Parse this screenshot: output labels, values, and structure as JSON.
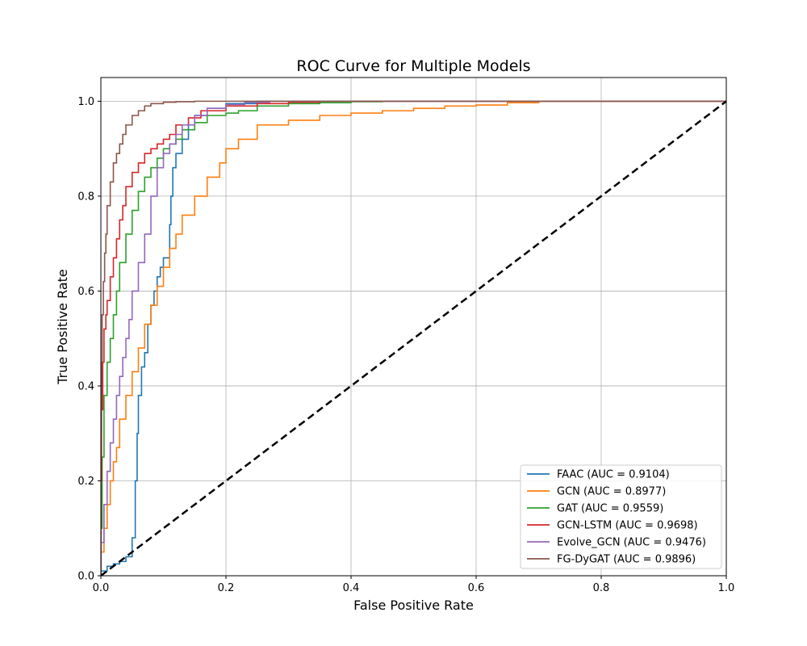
{
  "chart_data": {
    "type": "line",
    "title": "ROC Curve for Multiple Models",
    "xlabel": "False Positive Rate",
    "ylabel": "True Positive Rate",
    "xlim": [
      0.0,
      1.0
    ],
    "ylim": [
      0.0,
      1.05
    ],
    "xticks": [
      "0.0",
      "0.2",
      "0.4",
      "0.6",
      "0.8",
      "1.0"
    ],
    "yticks": [
      "0.0",
      "0.2",
      "0.4",
      "0.6",
      "0.8",
      "1.0"
    ],
    "grid": true,
    "legend_position": "bottom-right",
    "series": [
      {
        "name": "FAAC (AUC = 0.9104)",
        "color": "#1f77b4",
        "x": [
          0.0,
          0.01,
          0.02,
          0.03,
          0.04,
          0.05,
          0.055,
          0.058,
          0.06,
          0.065,
          0.07,
          0.075,
          0.08,
          0.085,
          0.09,
          0.095,
          0.1,
          0.11,
          0.112,
          0.115,
          0.12,
          0.13,
          0.14,
          0.15,
          0.17,
          0.2,
          0.25,
          0.3,
          1.0
        ],
        "y": [
          0.0,
          0.01,
          0.02,
          0.025,
          0.03,
          0.04,
          0.08,
          0.2,
          0.3,
          0.38,
          0.44,
          0.47,
          0.53,
          0.57,
          0.6,
          0.63,
          0.65,
          0.67,
          0.74,
          0.8,
          0.86,
          0.89,
          0.92,
          0.95,
          0.97,
          0.985,
          0.995,
          1.0,
          1.0
        ]
      },
      {
        "name": "GCN (AUC = 0.8977)",
        "color": "#ff7f0e",
        "x": [
          0.0,
          0.005,
          0.01,
          0.015,
          0.02,
          0.025,
          0.03,
          0.04,
          0.05,
          0.06,
          0.07,
          0.08,
          0.09,
          0.1,
          0.11,
          0.12,
          0.13,
          0.15,
          0.17,
          0.19,
          0.2,
          0.22,
          0.25,
          0.3,
          0.35,
          0.4,
          0.45,
          0.5,
          0.55,
          0.6,
          0.65,
          0.7,
          0.75,
          1.0
        ],
        "y": [
          0.0,
          0.05,
          0.1,
          0.15,
          0.2,
          0.24,
          0.27,
          0.33,
          0.38,
          0.43,
          0.48,
          0.53,
          0.57,
          0.61,
          0.65,
          0.69,
          0.72,
          0.76,
          0.8,
          0.84,
          0.87,
          0.9,
          0.92,
          0.95,
          0.96,
          0.97,
          0.975,
          0.98,
          0.985,
          0.99,
          0.992,
          0.997,
          1.0,
          1.0
        ]
      },
      {
        "name": "GAT (AUC = 0.9559)",
        "color": "#2ca02c",
        "x": [
          0.0,
          0.002,
          0.005,
          0.01,
          0.015,
          0.02,
          0.025,
          0.03,
          0.04,
          0.05,
          0.06,
          0.07,
          0.08,
          0.09,
          0.1,
          0.11,
          0.12,
          0.13,
          0.15,
          0.17,
          0.2,
          0.22,
          0.25,
          0.3,
          0.35,
          0.4,
          0.45,
          0.55,
          1.0
        ],
        "y": [
          0.0,
          0.1,
          0.25,
          0.38,
          0.45,
          0.5,
          0.55,
          0.6,
          0.66,
          0.72,
          0.77,
          0.81,
          0.84,
          0.86,
          0.88,
          0.9,
          0.91,
          0.92,
          0.94,
          0.955,
          0.97,
          0.975,
          0.98,
          0.99,
          0.995,
          0.997,
          0.999,
          1.0,
          1.0
        ]
      },
      {
        "name": "GCN-LSTM (AUC = 0.9698)",
        "color": "#d62728",
        "x": [
          0.0,
          0.001,
          0.003,
          0.005,
          0.008,
          0.01,
          0.015,
          0.02,
          0.025,
          0.03,
          0.035,
          0.04,
          0.05,
          0.06,
          0.07,
          0.08,
          0.09,
          0.1,
          0.11,
          0.12,
          0.14,
          0.16,
          0.2,
          0.25,
          0.3,
          0.35,
          1.0
        ],
        "y": [
          0.0,
          0.2,
          0.35,
          0.45,
          0.52,
          0.55,
          0.58,
          0.63,
          0.67,
          0.71,
          0.75,
          0.78,
          0.82,
          0.85,
          0.87,
          0.89,
          0.9,
          0.91,
          0.92,
          0.93,
          0.95,
          0.965,
          0.98,
          0.99,
          0.995,
          0.998,
          1.0
        ]
      },
      {
        "name": "Evolve_GCN (AUC = 0.9476)",
        "color": "#9467bd",
        "x": [
          0.0,
          0.005,
          0.01,
          0.015,
          0.02,
          0.025,
          0.03,
          0.035,
          0.04,
          0.045,
          0.05,
          0.06,
          0.07,
          0.08,
          0.09,
          0.1,
          0.11,
          0.12,
          0.13,
          0.15,
          0.17,
          0.2,
          0.23,
          0.27,
          0.3,
          1.0
        ],
        "y": [
          0.0,
          0.07,
          0.15,
          0.22,
          0.28,
          0.33,
          0.38,
          0.42,
          0.46,
          0.5,
          0.54,
          0.6,
          0.66,
          0.72,
          0.8,
          0.86,
          0.89,
          0.91,
          0.93,
          0.95,
          0.97,
          0.985,
          0.993,
          0.998,
          1.0,
          1.0
        ]
      },
      {
        "name": "FG-DyGAT (AUC = 0.9896)",
        "color": "#8c564b",
        "x": [
          0.0,
          0.001,
          0.002,
          0.004,
          0.006,
          0.008,
          0.01,
          0.015,
          0.02,
          0.025,
          0.03,
          0.035,
          0.04,
          0.05,
          0.06,
          0.07,
          0.08,
          0.1,
          0.12,
          0.15,
          0.2,
          1.0
        ],
        "y": [
          0.0,
          0.3,
          0.45,
          0.55,
          0.62,
          0.68,
          0.72,
          0.78,
          0.83,
          0.87,
          0.89,
          0.91,
          0.93,
          0.95,
          0.97,
          0.98,
          0.99,
          0.995,
          0.998,
          0.999,
          1.0,
          1.0
        ]
      }
    ],
    "reference_line": {
      "color": "#000000",
      "dashed": true,
      "x": [
        0.0,
        1.0
      ],
      "y": [
        0.0,
        1.0
      ]
    }
  }
}
